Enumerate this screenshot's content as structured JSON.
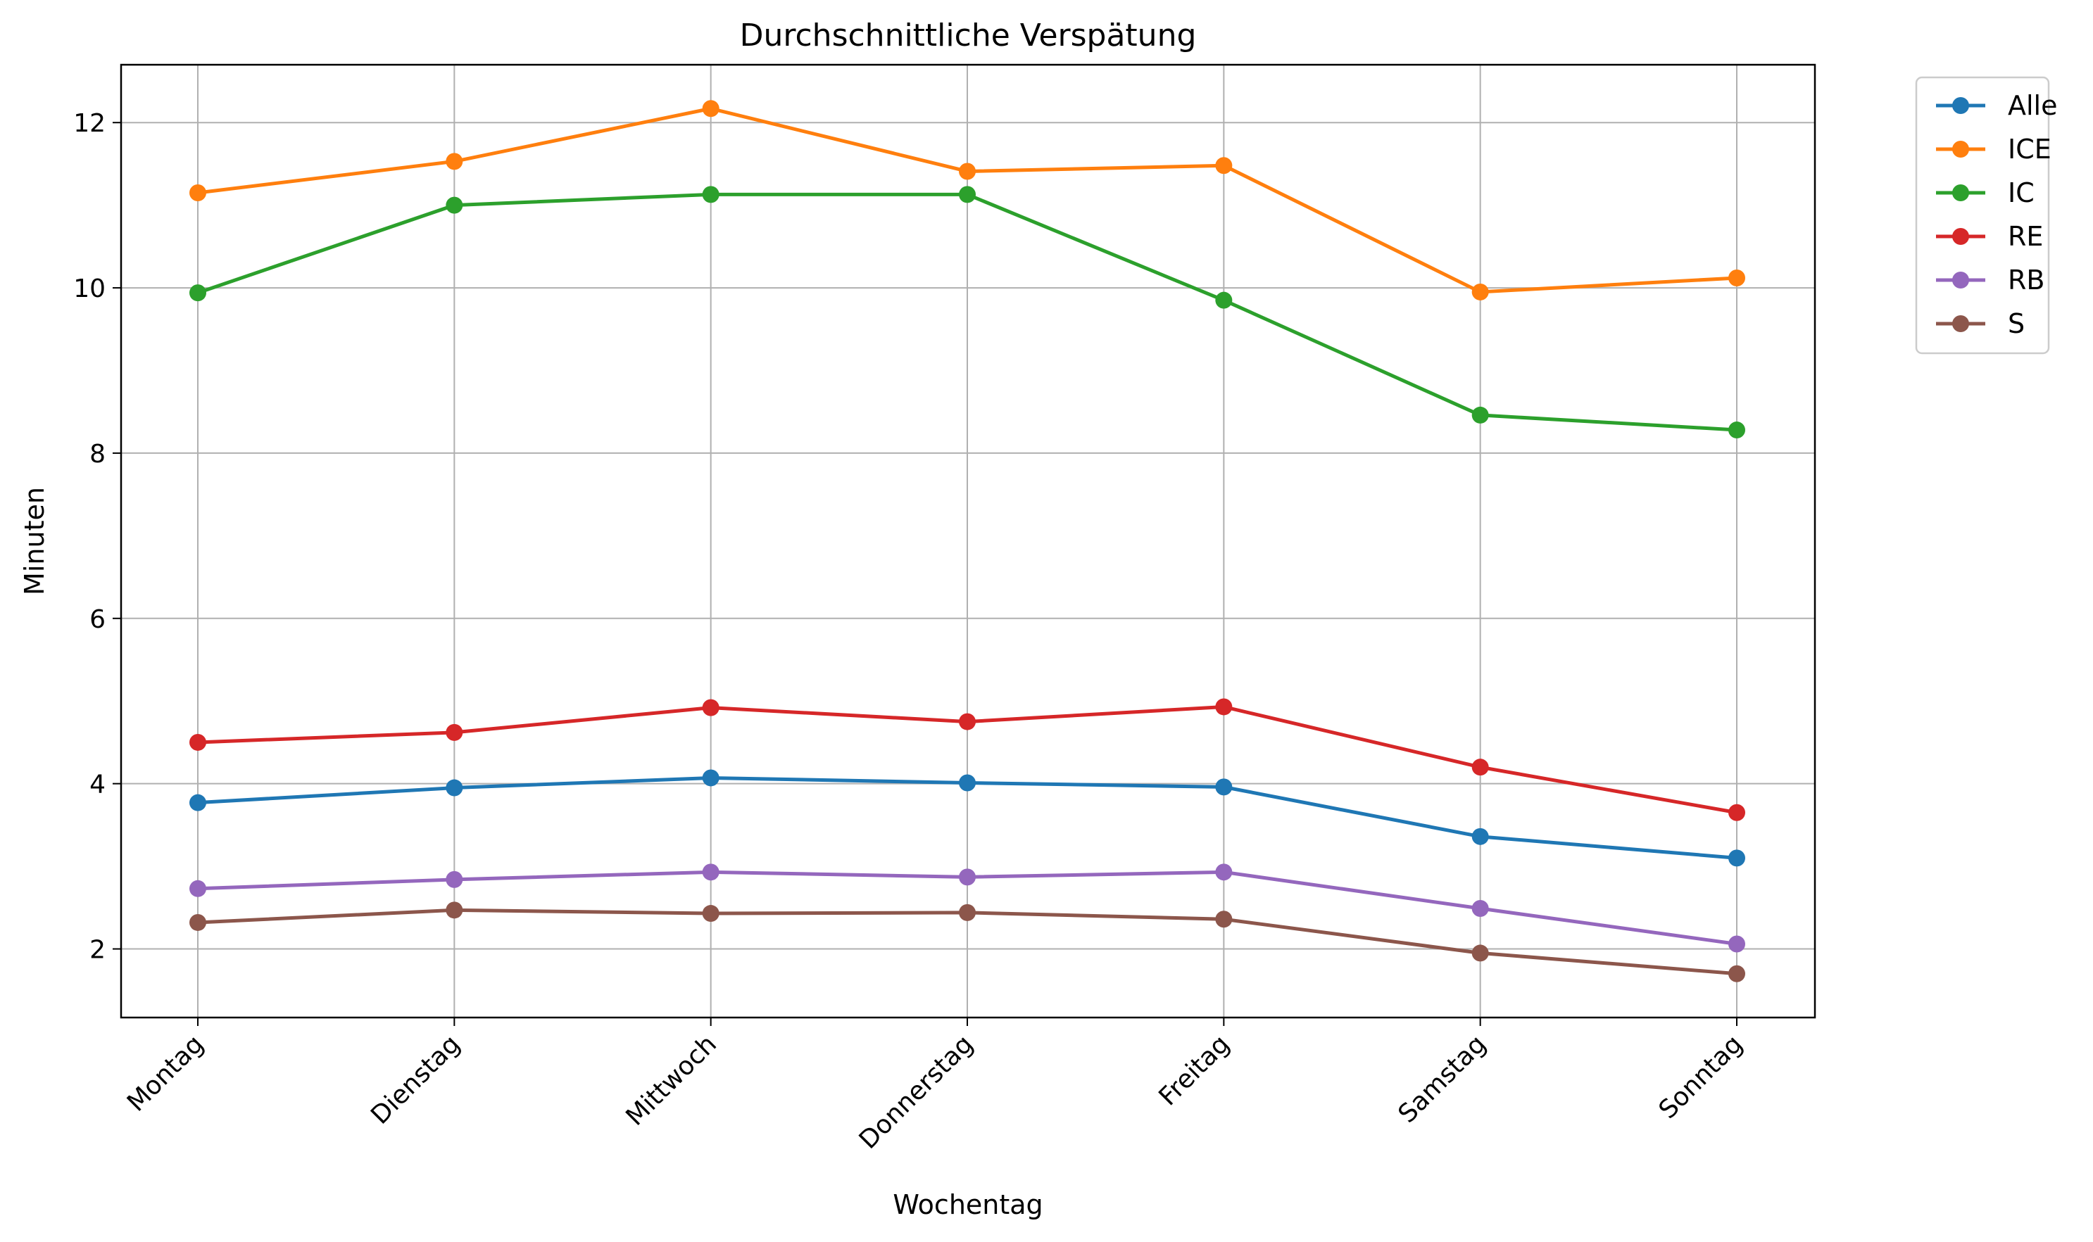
{
  "chart_data": {
    "type": "line",
    "title": "Durchschnittliche Verspätung",
    "xlabel": "Wochentag",
    "ylabel": "Minuten",
    "categories": [
      "Montag",
      "Dienstag",
      "Mittwoch",
      "Donnerstag",
      "Freitag",
      "Samstag",
      "Sonntag"
    ],
    "y_ticks": [
      2,
      4,
      6,
      8,
      10,
      12
    ],
    "ylim": [
      1.17,
      12.7
    ],
    "grid": true,
    "legend_position": "outside-top-right",
    "series": [
      {
        "name": "Alle",
        "color": "#1f77b4",
        "values": [
          3.77,
          3.95,
          4.07,
          4.01,
          3.96,
          3.36,
          3.1
        ]
      },
      {
        "name": "ICE",
        "color": "#ff7f0e",
        "values": [
          11.15,
          11.53,
          12.17,
          11.41,
          11.48,
          9.95,
          10.12
        ]
      },
      {
        "name": "IC",
        "color": "#2ca02c",
        "values": [
          9.94,
          11.0,
          11.13,
          11.13,
          9.85,
          8.46,
          8.28
        ]
      },
      {
        "name": "RE",
        "color": "#d62728",
        "values": [
          4.5,
          4.62,
          4.92,
          4.75,
          4.93,
          4.2,
          3.65
        ]
      },
      {
        "name": "RB",
        "color": "#9467bd",
        "values": [
          2.73,
          2.84,
          2.93,
          2.87,
          2.93,
          2.49,
          2.06
        ]
      },
      {
        "name": "S",
        "color": "#8c564b",
        "values": [
          2.32,
          2.47,
          2.43,
          2.44,
          2.36,
          1.95,
          1.7
        ]
      }
    ]
  }
}
